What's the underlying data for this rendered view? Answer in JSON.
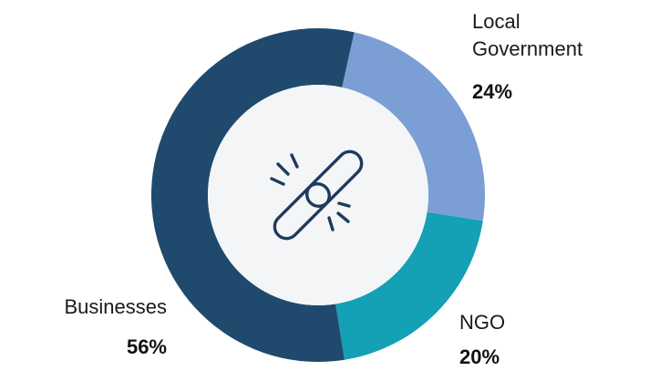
{
  "chart_data": {
    "type": "pie",
    "style": "donut",
    "center_icon": "chain-link-icon",
    "slices": [
      {
        "label_lines": [
          "Local",
          "Government"
        ],
        "value": 24,
        "value_label": "24%",
        "color": "#7B9FD4"
      },
      {
        "label_lines": [
          "NGO"
        ],
        "value": 20,
        "value_label": "20%",
        "color": "#14A0B5"
      },
      {
        "label_lines": [
          "Businesses"
        ],
        "value": 56,
        "value_label": "56%",
        "color": "#1F4A6E"
      }
    ],
    "colors": {
      "center_fill": "#F4F5F7",
      "icon_stroke": "#1F3A5C"
    }
  }
}
